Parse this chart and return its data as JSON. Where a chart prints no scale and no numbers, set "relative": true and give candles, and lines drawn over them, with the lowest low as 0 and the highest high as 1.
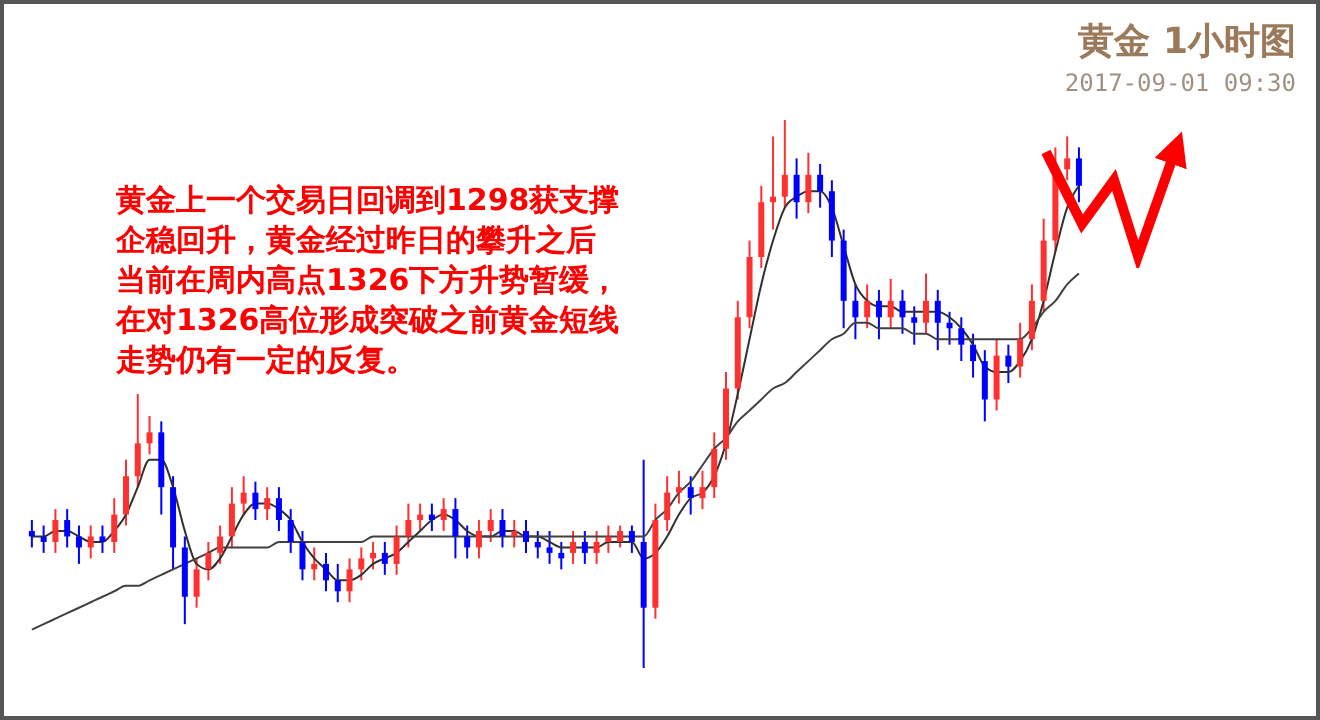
{
  "chart_data": {
    "type": "candlestick",
    "title": "黄金  1小时图",
    "subtitle": "2017-09-01 09:30",
    "annotations": [
      "黄金上一个交易日回调到1298获支撑",
      "企稳回升，黄金经过昨日的攀升之后",
      "当前在周内高点1326下方升势暂缓，",
      "在对1326高位形成突破之前黄金短线",
      "走势仍有一定的反复。"
    ],
    "relative": true,
    "tick_labels": false,
    "categories": [
      null,
      null,
      null,
      null,
      null,
      null,
      null,
      null,
      null,
      null,
      null,
      null,
      null,
      null,
      null,
      null,
      null,
      null,
      null,
      null,
      null,
      null,
      null,
      null,
      null,
      null,
      null,
      null,
      null,
      null,
      null,
      null,
      null,
      null,
      null,
      null,
      null,
      null,
      null,
      null,
      null,
      null,
      null,
      null,
      null,
      null,
      null,
      null,
      null,
      null,
      null,
      null,
      null,
      null,
      null,
      null,
      null,
      null,
      null,
      null,
      null,
      null,
      null,
      null,
      null,
      null,
      null,
      null,
      null,
      null,
      null,
      null,
      null,
      null,
      null,
      null,
      null,
      null,
      null,
      null,
      null,
      null,
      null,
      null,
      null,
      null,
      null,
      null,
      null,
      null
    ],
    "ohlc": [
      [
        0.25,
        0.27,
        0.22,
        0.24
      ],
      [
        0.24,
        0.26,
        0.21,
        0.23
      ],
      [
        0.23,
        0.29,
        0.21,
        0.27
      ],
      [
        0.27,
        0.29,
        0.22,
        0.24
      ],
      [
        0.24,
        0.26,
        0.19,
        0.22
      ],
      [
        0.22,
        0.26,
        0.2,
        0.24
      ],
      [
        0.24,
        0.26,
        0.21,
        0.23
      ],
      [
        0.23,
        0.31,
        0.21,
        0.28
      ],
      [
        0.28,
        0.38,
        0.26,
        0.35
      ],
      [
        0.35,
        0.5,
        0.33,
        0.41
      ],
      [
        0.41,
        0.46,
        0.39,
        0.43
      ],
      [
        0.43,
        0.45,
        0.28,
        0.33
      ],
      [
        0.33,
        0.35,
        0.18,
        0.22
      ],
      [
        0.22,
        0.24,
        0.08,
        0.13
      ],
      [
        0.13,
        0.2,
        0.11,
        0.18
      ],
      [
        0.18,
        0.23,
        0.16,
        0.21
      ],
      [
        0.21,
        0.26,
        0.19,
        0.24
      ],
      [
        0.24,
        0.33,
        0.22,
        0.3
      ],
      [
        0.3,
        0.35,
        0.28,
        0.32
      ],
      [
        0.32,
        0.34,
        0.27,
        0.29
      ],
      [
        0.29,
        0.33,
        0.27,
        0.31
      ],
      [
        0.31,
        0.33,
        0.25,
        0.27
      ],
      [
        0.27,
        0.29,
        0.21,
        0.23
      ],
      [
        0.23,
        0.25,
        0.16,
        0.18
      ],
      [
        0.18,
        0.22,
        0.16,
        0.19
      ],
      [
        0.19,
        0.21,
        0.14,
        0.16
      ],
      [
        0.16,
        0.19,
        0.12,
        0.14
      ],
      [
        0.14,
        0.2,
        0.12,
        0.18
      ],
      [
        0.18,
        0.22,
        0.16,
        0.2
      ],
      [
        0.2,
        0.23,
        0.18,
        0.21
      ],
      [
        0.21,
        0.23,
        0.17,
        0.19
      ],
      [
        0.19,
        0.26,
        0.17,
        0.24
      ],
      [
        0.24,
        0.3,
        0.22,
        0.27
      ],
      [
        0.27,
        0.3,
        0.25,
        0.28
      ],
      [
        0.28,
        0.3,
        0.25,
        0.27
      ],
      [
        0.27,
        0.31,
        0.25,
        0.29
      ],
      [
        0.29,
        0.31,
        0.2,
        0.24
      ],
      [
        0.24,
        0.26,
        0.2,
        0.22
      ],
      [
        0.22,
        0.27,
        0.2,
        0.25
      ],
      [
        0.25,
        0.29,
        0.23,
        0.27
      ],
      [
        0.27,
        0.29,
        0.22,
        0.24
      ],
      [
        0.24,
        0.27,
        0.22,
        0.25
      ],
      [
        0.25,
        0.27,
        0.21,
        0.23
      ],
      [
        0.23,
        0.25,
        0.2,
        0.22
      ],
      [
        0.22,
        0.25,
        0.19,
        0.21
      ],
      [
        0.21,
        0.23,
        0.18,
        0.2
      ],
      [
        0.21,
        0.25,
        0.19,
        0.23
      ],
      [
        0.23,
        0.25,
        0.19,
        0.21
      ],
      [
        0.21,
        0.25,
        0.19,
        0.23
      ],
      [
        0.23,
        0.26,
        0.21,
        0.24
      ],
      [
        0.23,
        0.26,
        0.22,
        0.25
      ],
      [
        0.25,
        0.26,
        0.21,
        0.23
      ],
      [
        0.23,
        0.38,
        0.0,
        0.11
      ],
      [
        0.11,
        0.3,
        0.09,
        0.27
      ],
      [
        0.27,
        0.35,
        0.25,
        0.32
      ],
      [
        0.32,
        0.36,
        0.3,
        0.33
      ],
      [
        0.33,
        0.35,
        0.28,
        0.31
      ],
      [
        0.31,
        0.36,
        0.29,
        0.33
      ],
      [
        0.33,
        0.43,
        0.31,
        0.4
      ],
      [
        0.4,
        0.54,
        0.38,
        0.51
      ],
      [
        0.51,
        0.67,
        0.49,
        0.64
      ],
      [
        0.64,
        0.78,
        0.62,
        0.75
      ],
      [
        0.75,
        0.88,
        0.73,
        0.85
      ],
      [
        0.85,
        0.97,
        0.8,
        0.86
      ],
      [
        0.86,
        1.0,
        0.84,
        0.9
      ],
      [
        0.9,
        0.93,
        0.82,
        0.85
      ],
      [
        0.85,
        0.94,
        0.83,
        0.9
      ],
      [
        0.9,
        0.92,
        0.84,
        0.87
      ],
      [
        0.87,
        0.89,
        0.75,
        0.78
      ],
      [
        0.78,
        0.8,
        0.62,
        0.67
      ],
      [
        0.67,
        0.7,
        0.6,
        0.64
      ],
      [
        0.64,
        0.7,
        0.62,
        0.67
      ],
      [
        0.67,
        0.69,
        0.6,
        0.64
      ],
      [
        0.64,
        0.71,
        0.62,
        0.67
      ],
      [
        0.67,
        0.69,
        0.61,
        0.64
      ],
      [
        0.64,
        0.66,
        0.59,
        0.63
      ],
      [
        0.63,
        0.72,
        0.61,
        0.67
      ],
      [
        0.67,
        0.69,
        0.58,
        0.63
      ],
      [
        0.63,
        0.65,
        0.59,
        0.62
      ],
      [
        0.62,
        0.64,
        0.56,
        0.59
      ],
      [
        0.59,
        0.61,
        0.53,
        0.56
      ],
      [
        0.56,
        0.58,
        0.45,
        0.49
      ],
      [
        0.49,
        0.6,
        0.47,
        0.57
      ],
      [
        0.57,
        0.59,
        0.52,
        0.55
      ],
      [
        0.55,
        0.63,
        0.53,
        0.6
      ],
      [
        0.6,
        0.7,
        0.58,
        0.67
      ],
      [
        0.67,
        0.82,
        0.65,
        0.78
      ],
      [
        0.78,
        0.95,
        0.76,
        0.91
      ],
      [
        0.91,
        0.97,
        0.89,
        0.93
      ],
      [
        0.93,
        0.95,
        0.85,
        0.88
      ]
    ],
    "colors": [
      "#0000ff",
      "#0000ff",
      "#ff3030",
      "#0000ff",
      "#0000ff",
      "#ff3030",
      "#0000ff",
      "#ff3030",
      "#ff3030",
      "#ff3030",
      "#ff3030",
      "#0000ff",
      "#0000ff",
      "#0000ff",
      "#ff3030",
      "#ff3030",
      "#ff3030",
      "#ff3030",
      "#ff3030",
      "#0000ff",
      "#ff3030",
      "#0000ff",
      "#0000ff",
      "#0000ff",
      "#ff3030",
      "#0000ff",
      "#0000ff",
      "#ff3030",
      "#ff3030",
      "#ff3030",
      "#0000ff",
      "#ff3030",
      "#ff3030",
      "#ff3030",
      "#0000ff",
      "#ff3030",
      "#0000ff",
      "#0000ff",
      "#ff3030",
      "#ff3030",
      "#0000ff",
      "#ff3030",
      "#0000ff",
      "#0000ff",
      "#0000ff",
      "#0000ff",
      "#ff3030",
      "#0000ff",
      "#ff3030",
      "#ff3030",
      "#ff3030",
      "#0000ff",
      "#0000ff",
      "#ff3030",
      "#ff3030",
      "#ff3030",
      "#0000ff",
      "#ff3030",
      "#ff3030",
      "#ff3030",
      "#ff3030",
      "#ff3030",
      "#ff3030",
      "#ff3030",
      "#ff3030",
      "#0000ff",
      "#ff3030",
      "#0000ff",
      "#0000ff",
      "#0000ff",
      "#0000ff",
      "#ff3030",
      "#0000ff",
      "#ff3030",
      "#0000ff",
      "#0000ff",
      "#ff3030",
      "#0000ff",
      "#0000ff",
      "#0000ff",
      "#0000ff",
      "#0000ff",
      "#ff3030",
      "#0000ff",
      "#ff3030",
      "#ff3030",
      "#ff3030",
      "#ff3030",
      "#ff3030",
      "#0000ff"
    ],
    "series": [
      {
        "type": "line",
        "color": "#303030",
        "values": [
          0.24,
          0.24,
          0.25,
          0.25,
          0.24,
          0.23,
          0.23,
          0.25,
          0.28,
          0.33,
          0.38,
          0.38,
          0.33,
          0.25,
          0.19,
          0.18,
          0.2,
          0.24,
          0.28,
          0.3,
          0.3,
          0.29,
          0.27,
          0.23,
          0.2,
          0.18,
          0.16,
          0.16,
          0.17,
          0.19,
          0.2,
          0.21,
          0.23,
          0.25,
          0.27,
          0.28,
          0.27,
          0.25,
          0.24,
          0.24,
          0.25,
          0.25,
          0.24,
          0.24,
          0.23,
          0.22,
          0.22,
          0.22,
          0.22,
          0.23,
          0.23,
          0.23,
          0.2,
          0.21,
          0.24,
          0.28,
          0.31,
          0.32,
          0.35,
          0.41,
          0.5,
          0.6,
          0.7,
          0.78,
          0.84,
          0.86,
          0.87,
          0.87,
          0.84,
          0.77,
          0.7,
          0.67,
          0.66,
          0.66,
          0.65,
          0.65,
          0.65,
          0.65,
          0.64,
          0.62,
          0.59,
          0.55,
          0.54,
          0.54,
          0.56,
          0.6,
          0.67,
          0.76,
          0.84,
          0.88
        ]
      },
      {
        "type": "line",
        "color": "#404040",
        "values": [
          0.07,
          0.08,
          0.09,
          0.1,
          0.11,
          0.12,
          0.13,
          0.14,
          0.15,
          0.15,
          0.16,
          0.17,
          0.18,
          0.19,
          0.2,
          0.21,
          0.22,
          0.22,
          0.22,
          0.22,
          0.22,
          0.23,
          0.23,
          0.23,
          0.23,
          0.23,
          0.23,
          0.23,
          0.23,
          0.24,
          0.24,
          0.24,
          0.24,
          0.24,
          0.24,
          0.24,
          0.24,
          0.24,
          0.24,
          0.24,
          0.24,
          0.24,
          0.24,
          0.24,
          0.24,
          0.24,
          0.24,
          0.24,
          0.24,
          0.24,
          0.24,
          0.24,
          0.24,
          0.27,
          0.29,
          0.32,
          0.34,
          0.37,
          0.4,
          0.42,
          0.45,
          0.47,
          0.49,
          0.51,
          0.52,
          0.54,
          0.56,
          0.58,
          0.6,
          0.61,
          0.63,
          0.63,
          0.62,
          0.62,
          0.62,
          0.61,
          0.61,
          0.6,
          0.6,
          0.6,
          0.6,
          0.6,
          0.6,
          0.6,
          0.6,
          0.62,
          0.65,
          0.67,
          0.7,
          0.72
        ]
      }
    ]
  }
}
